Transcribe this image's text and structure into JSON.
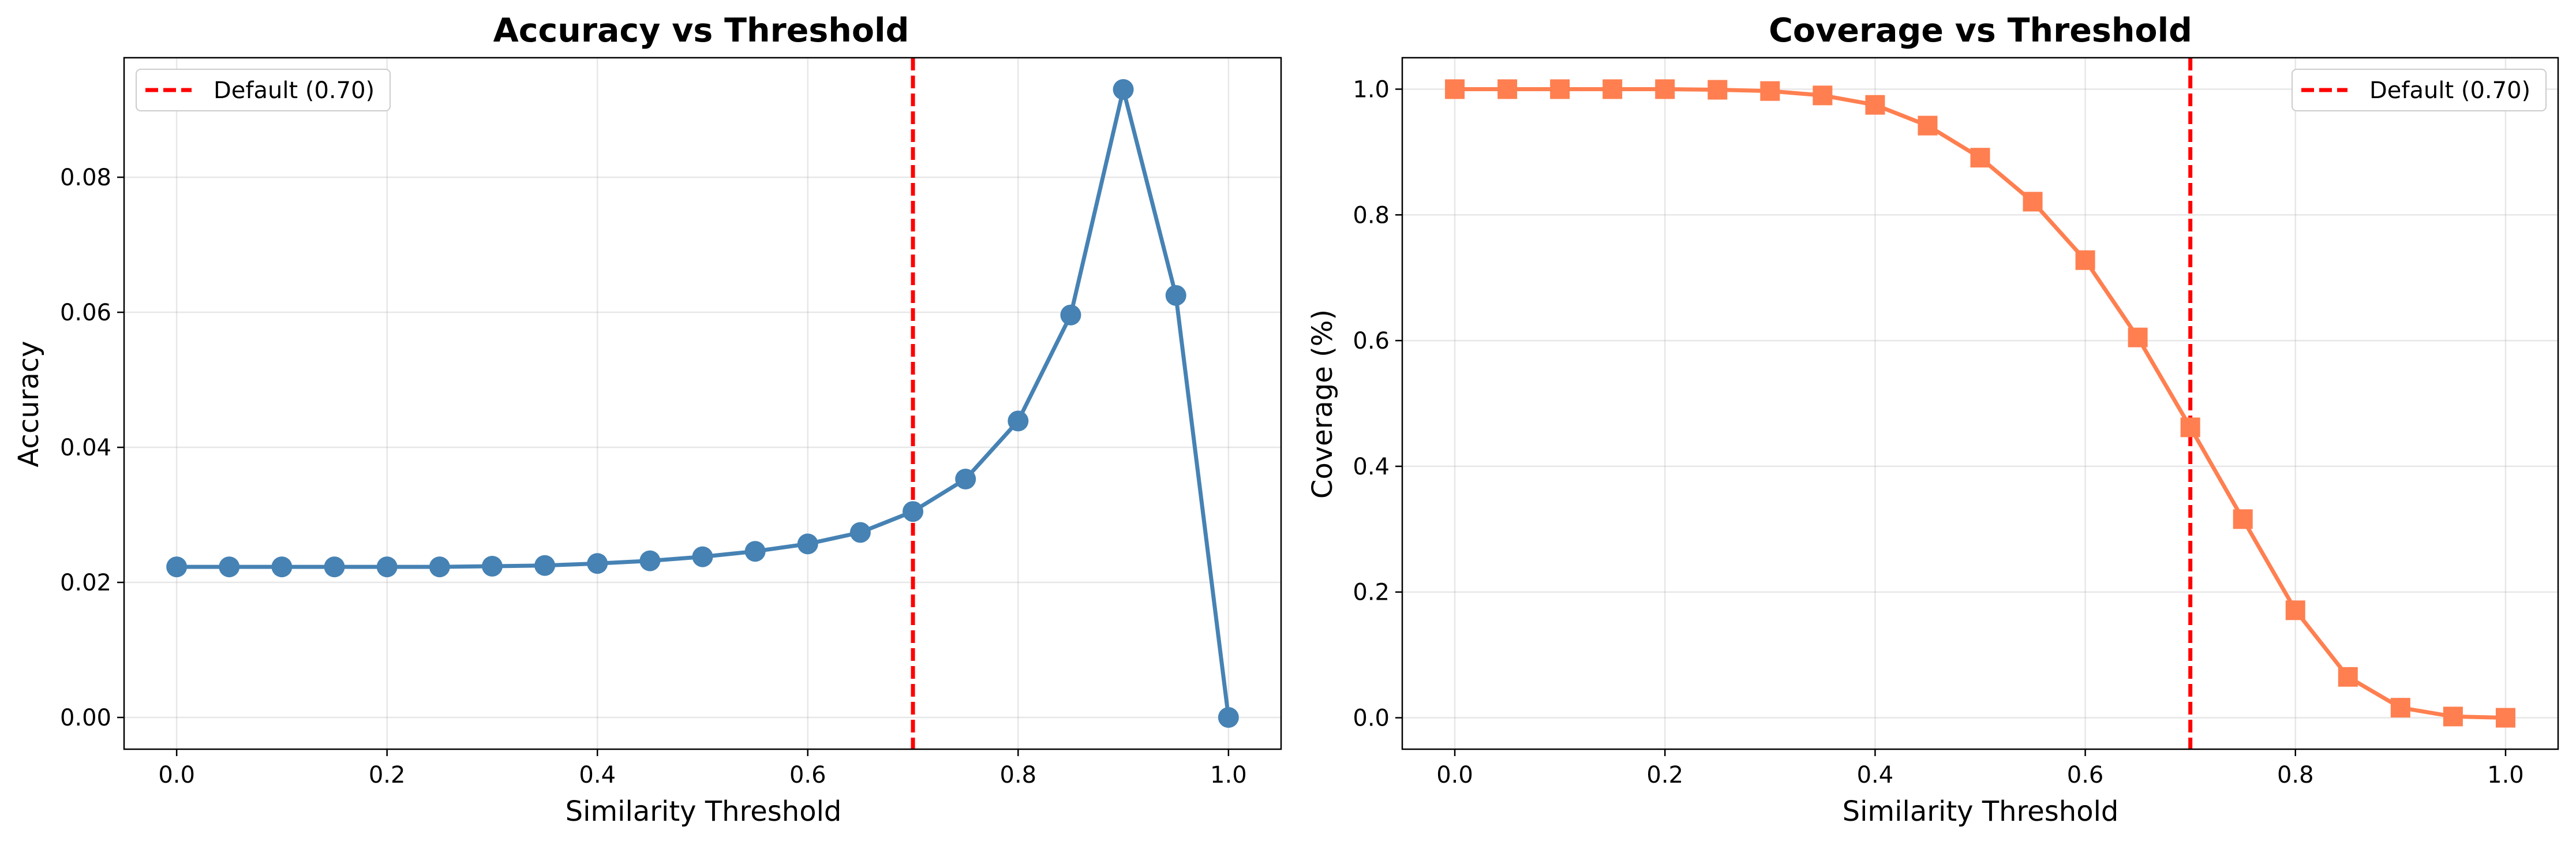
{
  "chart_data": [
    {
      "type": "line",
      "title": "Accuracy vs Threshold",
      "xlabel": "Similarity Threshold",
      "ylabel": "Accuracy",
      "xlim": [
        -0.05,
        1.05
      ],
      "ylim": [
        -0.0047,
        0.0977
      ],
      "xticks": [
        0.0,
        0.2,
        0.4,
        0.6,
        0.8,
        1.0
      ],
      "xtick_labels": [
        "0.0",
        "0.2",
        "0.4",
        "0.6",
        "0.8",
        "1.0"
      ],
      "yticks": [
        0.0,
        0.02,
        0.04,
        0.06,
        0.08
      ],
      "ytick_labels": [
        "0.00",
        "0.02",
        "0.04",
        "0.06",
        "0.08"
      ],
      "grid": true,
      "legend_position": "top-left",
      "marker": "circle",
      "series_color": "#4682B4",
      "x": [
        0.0,
        0.05,
        0.1,
        0.15,
        0.2,
        0.25,
        0.3,
        0.35,
        0.4,
        0.45,
        0.5,
        0.55,
        0.6,
        0.65,
        0.7,
        0.75,
        0.8,
        0.85,
        0.9,
        0.95,
        1.0
      ],
      "values": [
        0.0223,
        0.0223,
        0.0223,
        0.0223,
        0.0223,
        0.0223,
        0.0224,
        0.0225,
        0.0228,
        0.0232,
        0.0238,
        0.0246,
        0.0257,
        0.0274,
        0.0305,
        0.0353,
        0.0439,
        0.0596,
        0.093,
        0.0625,
        0.0
      ],
      "reference_line": {
        "x": 0.7,
        "label": "Default (0.70)",
        "color": "#FF0000",
        "style": "dashed"
      }
    },
    {
      "type": "line",
      "title": "Coverage vs Threshold",
      "xlabel": "Similarity Threshold",
      "ylabel": "Coverage (%)",
      "xlim": [
        -0.05,
        1.05
      ],
      "ylim": [
        -0.05,
        1.05
      ],
      "xticks": [
        0.0,
        0.2,
        0.4,
        0.6,
        0.8,
        1.0
      ],
      "xtick_labels": [
        "0.0",
        "0.2",
        "0.4",
        "0.6",
        "0.8",
        "1.0"
      ],
      "yticks": [
        0.0,
        0.2,
        0.4,
        0.6,
        0.8,
        1.0
      ],
      "ytick_labels": [
        "0.0",
        "0.2",
        "0.4",
        "0.6",
        "0.8",
        "1.0"
      ],
      "grid": true,
      "legend_position": "top-right",
      "marker": "square",
      "series_color": "#FF7F50",
      "x": [
        0.0,
        0.05,
        0.1,
        0.15,
        0.2,
        0.25,
        0.3,
        0.35,
        0.4,
        0.45,
        0.5,
        0.55,
        0.6,
        0.65,
        0.7,
        0.75,
        0.8,
        0.85,
        0.9,
        0.95,
        1.0
      ],
      "values": [
        1.0,
        1.0,
        1.0,
        1.0,
        1.0,
        0.999,
        0.997,
        0.99,
        0.975,
        0.942,
        0.891,
        0.821,
        0.728,
        0.605,
        0.462,
        0.316,
        0.171,
        0.065,
        0.016,
        0.002,
        0.0
      ],
      "reference_line": {
        "x": 0.7,
        "label": "Default (0.70)",
        "color": "#FF0000",
        "style": "dashed"
      }
    }
  ]
}
